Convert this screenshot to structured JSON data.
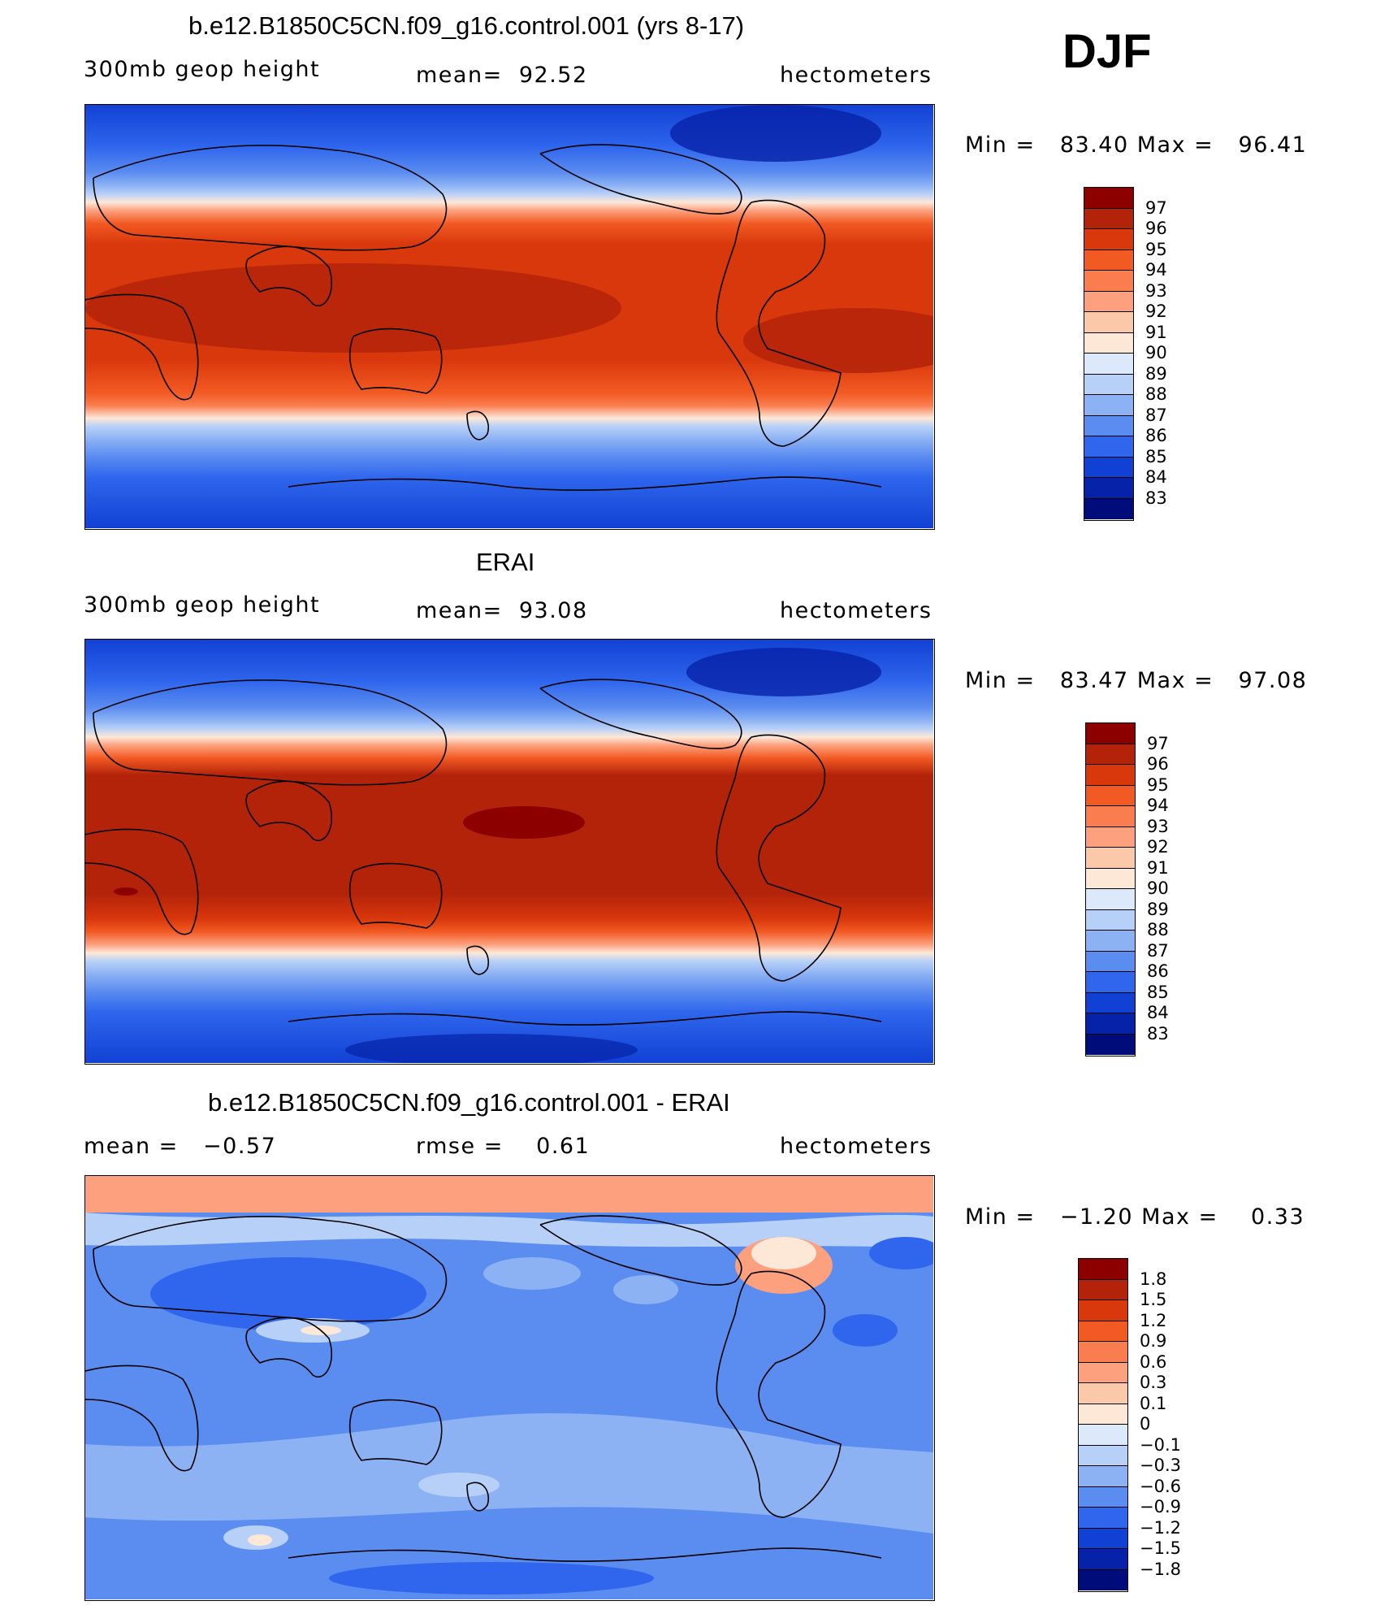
{
  "season": "DJF",
  "panels": [
    {
      "id": "model",
      "title": "b.e12.B1850C5CN.f09_g16.control.001 (yrs 8-17)",
      "left_label": "300mb geop height",
      "center_label": "mean=  92.52",
      "right_label": "hectometers",
      "minmax": "Min =   83.40 Max =   96.41",
      "colorbar_levels": [
        "97",
        "96",
        "95",
        "94",
        "93",
        "92",
        "91",
        "90",
        "89",
        "88",
        "87",
        "86",
        "85",
        "84",
        "83"
      ],
      "colorbar_colors": [
        "#8c0000",
        "#b3230a",
        "#d9370c",
        "#f25a23",
        "#fa7d4f",
        "#fca07d",
        "#fcc8aa",
        "#fde8d8",
        "#dbe9fb",
        "#b7d0f8",
        "#8cb2f4",
        "#5b8cf0",
        "#2f66ed",
        "#1141d4",
        "#0622a8",
        "#000c7a"
      ]
    },
    {
      "id": "obs",
      "title": "ERAI",
      "left_label": "300mb geop height",
      "center_label": "mean=  93.08",
      "right_label": "hectometers",
      "minmax": "Min =   83.47 Max =   97.08",
      "colorbar_levels": [
        "97",
        "96",
        "95",
        "94",
        "93",
        "92",
        "91",
        "90",
        "89",
        "88",
        "87",
        "86",
        "85",
        "84",
        "83"
      ],
      "colorbar_colors": [
        "#8c0000",
        "#b3230a",
        "#d9370c",
        "#f25a23",
        "#fa7d4f",
        "#fca07d",
        "#fcc8aa",
        "#fde8d8",
        "#dbe9fb",
        "#b7d0f8",
        "#8cb2f4",
        "#5b8cf0",
        "#2f66ed",
        "#1141d4",
        "#0622a8",
        "#000c7a"
      ]
    },
    {
      "id": "diff",
      "title": "b.e12.B1850C5CN.f09_g16.control.001 - ERAI",
      "left_label": "mean =   −0.57",
      "center_label": "rmse =    0.61",
      "right_label": "hectometers",
      "minmax": "Min =   −1.20 Max =    0.33",
      "colorbar_levels": [
        "1.8",
        "1.5",
        "1.2",
        "0.9",
        "0.6",
        "0.3",
        "0.1",
        "0",
        "−0.1",
        "−0.3",
        "−0.6",
        "−0.9",
        "−1.2",
        "−1.5",
        "−1.8"
      ],
      "colorbar_colors": [
        "#8c0000",
        "#b3230a",
        "#d9370c",
        "#f25a23",
        "#fa7d4f",
        "#fca07d",
        "#fcc8aa",
        "#fde8d8",
        "#dbe9fb",
        "#b7d0f8",
        "#8cb2f4",
        "#5b8cf0",
        "#2f66ed",
        "#1141d4",
        "#0622a8",
        "#000c7a"
      ]
    }
  ]
}
